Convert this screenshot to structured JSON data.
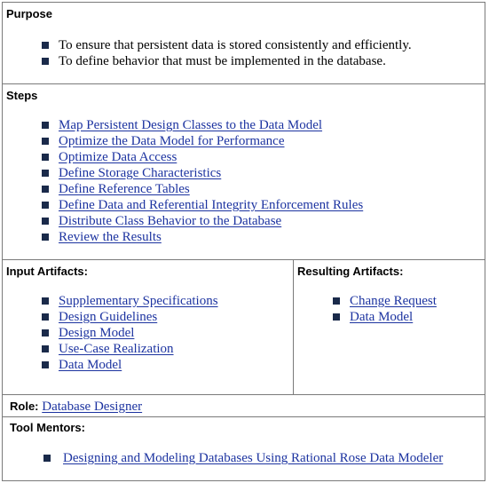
{
  "purpose": {
    "heading": "Purpose",
    "items": [
      "To ensure that persistent data is stored consistently and efficiently.",
      "To define behavior that must be implemented in the database."
    ]
  },
  "steps": {
    "heading": "Steps",
    "items": [
      "Map Persistent Design Classes to the Data Model",
      "Optimize the Data Model for Performance",
      "Optimize Data Access",
      "Define Storage Characteristics",
      "Define Reference Tables",
      "Define Data and Referential Integrity Enforcement Rules",
      "Distribute Class Behavior to the Database",
      "Review the Results"
    ]
  },
  "input_artifacts": {
    "heading": "Input Artifacts:",
    "items": [
      "Supplementary Specifications",
      "Design Guidelines",
      "Design Model",
      "Use-Case Realization",
      "Data Model"
    ]
  },
  "resulting_artifacts": {
    "heading": "Resulting Artifacts:",
    "items": [
      "Change Request",
      "Data Model"
    ]
  },
  "role": {
    "label": "Role:",
    "value": "Database Designer"
  },
  "tool_mentors": {
    "heading": "Tool Mentors:",
    "items": [
      "Designing and Modeling Databases Using Rational Rose Data Modeler"
    ]
  },
  "colors": {
    "link": "#1c33a0",
    "border": "#7a7a7a",
    "bullet": "#1a2a4a"
  }
}
